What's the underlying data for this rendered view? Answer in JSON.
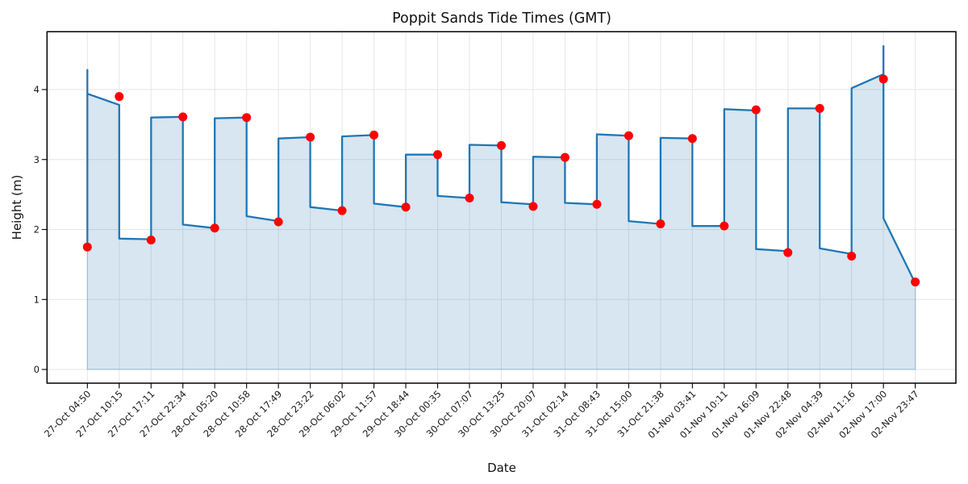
{
  "title": "Poppit Sands Tide Times (GMT)",
  "x_axis": {
    "label": "Date",
    "tick_labels": [
      "27-Oct 04:50",
      "27-Oct 10:15",
      "27-Oct 17:11",
      "27-Oct 22:34",
      "28-Oct 05:20",
      "28-Oct 10:58",
      "28-Oct 17:49",
      "28-Oct 23:22",
      "29-Oct 06:02",
      "29-Oct 11:57",
      "29-Oct 18:44",
      "30-Oct 00:35",
      "30-Oct 07:07",
      "30-Oct 13:25",
      "30-Oct 20:07",
      "31-Oct 02:14",
      "31-Oct 08:43",
      "31-Oct 15:00",
      "31-Oct 21:38",
      "01-Nov 03:41",
      "01-Nov 10:11",
      "01-Nov 16:09",
      "01-Nov 22:48",
      "02-Nov 04:39",
      "02-Nov 11:16",
      "02-Nov 17:00",
      "02-Nov 23:47"
    ]
  },
  "y_axis": {
    "label": "Height (m)",
    "ticks": [
      0,
      1,
      2,
      3,
      4
    ]
  },
  "chart_data": {
    "type": "line",
    "title": "Poppit Sands Tide Times (GMT)",
    "xlabel": "Date",
    "ylabel": "Height (m)",
    "ylim": [
      -0.2,
      4.85
    ],
    "grid": true,
    "legend": "none",
    "categories": [
      "27-Oct 04:50",
      "27-Oct 10:15",
      "27-Oct 17:11",
      "27-Oct 22:34",
      "28-Oct 05:20",
      "28-Oct 10:58",
      "28-Oct 17:49",
      "28-Oct 23:22",
      "29-Oct 06:02",
      "29-Oct 11:57",
      "29-Oct 18:44",
      "30-Oct 00:35",
      "30-Oct 07:07",
      "30-Oct 13:25",
      "30-Oct 20:07",
      "31-Oct 02:14",
      "31-Oct 08:43",
      "31-Oct 15:00",
      "31-Oct 21:38",
      "01-Nov 03:41",
      "01-Nov 10:11",
      "01-Nov 16:09",
      "01-Nov 22:48",
      "02-Nov 04:39",
      "02-Nov 11:16",
      "02-Nov 17:00",
      "02-Nov 23:47"
    ],
    "series": [
      {
        "name": "Tide height (m)",
        "marker": "red-dot",
        "values": [
          1.75,
          3.9,
          1.85,
          3.61,
          2.02,
          3.6,
          2.11,
          3.32,
          2.27,
          3.35,
          2.32,
          3.07,
          2.45,
          3.2,
          2.33,
          3.03,
          2.36,
          3.34,
          2.08,
          3.3,
          2.05,
          3.71,
          1.67,
          3.73,
          1.62,
          4.15,
          1.25
        ]
      }
    ],
    "tide_types": [
      "low",
      "high",
      "low",
      "high",
      "low",
      "high",
      "low",
      "high",
      "low",
      "high",
      "low",
      "high",
      "low",
      "high",
      "low",
      "high",
      "low",
      "high",
      "low",
      "high",
      "low",
      "high",
      "low",
      "high",
      "low",
      "high",
      "low"
    ],
    "line_path": [
      [
        0,
        1.75
      ],
      [
        0,
        4.28
      ],
      [
        0,
        3.94
      ],
      [
        1,
        3.78
      ],
      [
        1,
        1.87
      ],
      [
        2,
        1.86
      ],
      [
        2,
        3.6
      ],
      [
        3,
        3.61
      ],
      [
        3,
        2.07
      ],
      [
        4,
        2.02
      ],
      [
        4,
        3.59
      ],
      [
        5,
        3.6
      ],
      [
        5,
        2.19
      ],
      [
        6,
        2.12
      ],
      [
        6,
        3.3
      ],
      [
        7,
        3.32
      ],
      [
        7,
        2.32
      ],
      [
        8,
        2.27
      ],
      [
        8,
        3.33
      ],
      [
        9,
        3.35
      ],
      [
        9,
        2.37
      ],
      [
        10,
        2.32
      ],
      [
        10,
        3.07
      ],
      [
        11,
        3.07
      ],
      [
        11,
        2.48
      ],
      [
        12,
        2.45
      ],
      [
        12,
        3.21
      ],
      [
        13,
        3.2
      ],
      [
        13,
        2.39
      ],
      [
        14,
        2.36
      ],
      [
        14,
        3.04
      ],
      [
        15,
        3.03
      ],
      [
        15,
        2.38
      ],
      [
        16,
        2.36
      ],
      [
        16,
        3.36
      ],
      [
        17,
        3.34
      ],
      [
        17,
        2.12
      ],
      [
        18,
        2.08
      ],
      [
        18,
        3.31
      ],
      [
        19,
        3.3
      ],
      [
        19,
        2.05
      ],
      [
        20,
        2.05
      ],
      [
        20,
        3.72
      ],
      [
        21,
        3.7
      ],
      [
        21,
        1.72
      ],
      [
        22,
        1.69
      ],
      [
        22,
        3.73
      ],
      [
        23,
        3.73
      ],
      [
        23,
        1.73
      ],
      [
        24,
        1.65
      ],
      [
        24,
        4.02
      ],
      [
        25,
        4.22
      ],
      [
        25,
        4.62
      ],
      [
        25,
        2.16
      ],
      [
        26,
        1.23
      ]
    ],
    "colors": {
      "line": "#1f77b4",
      "fill": "rgba(31,119,180,0.18)",
      "fill_edge": "rgba(31,119,180,0.30)",
      "marker": "#ff0000",
      "grid": "#e6e6e6"
    }
  }
}
